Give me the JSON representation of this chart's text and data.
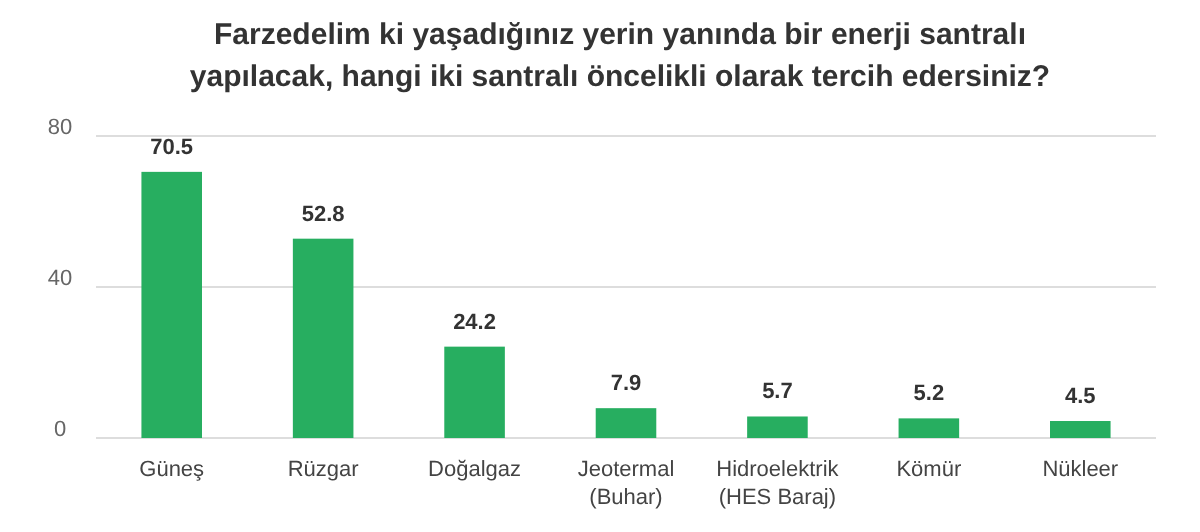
{
  "chart_data": {
    "type": "bar",
    "title": "Farzedelim ki yaşadığınız yerin yanında bir enerji santralı\nyapılacak, hangi iki santralı öncelikli olarak tercih edersiniz?",
    "categories": [
      "Güneş",
      "Rüzgar",
      "Doğalgaz",
      "Jeotermal\n(Buhar)",
      "Hidroelektrik\n(HES Baraj)",
      "Kömür",
      "Nükleer"
    ],
    "values": [
      70.5,
      52.8,
      24.2,
      7.9,
      5.7,
      5.2,
      4.5
    ],
    "color": "#27ae60",
    "ylim": [
      0,
      80
    ],
    "yticks": [
      0,
      40,
      80
    ],
    "grid": "y",
    "data_labels": true
  }
}
